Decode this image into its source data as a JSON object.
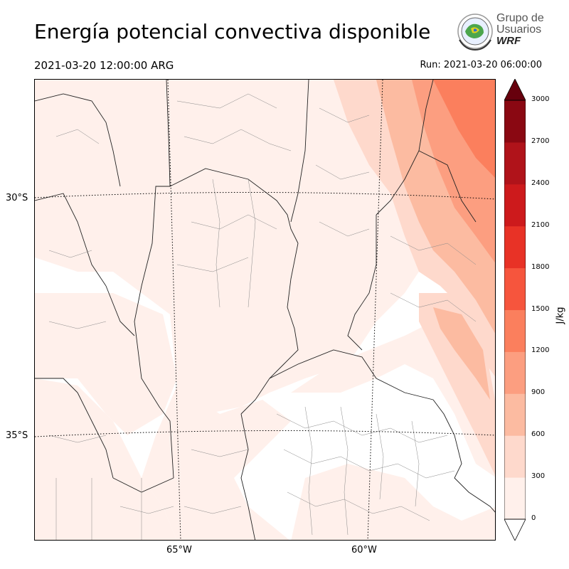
{
  "header": {
    "title": "Energía potencial convectiva disponible",
    "valid_time": "2021-03-20 12:00:00 ARG",
    "run_time": "Run: 2021-03-20 06:00:00"
  },
  "logo": {
    "line1": "Grupo de",
    "line2": "Usuarios",
    "line3": "WRF"
  },
  "map": {
    "lat_labels": [
      "30°S",
      "35°S"
    ],
    "lon_labels": [
      "65°W",
      "60°W"
    ]
  },
  "colorbar": {
    "unit_label": "J/kg",
    "ticks": [
      "0",
      "300",
      "600",
      "900",
      "1200",
      "1500",
      "1800",
      "2100",
      "2400",
      "2700",
      "3000"
    ],
    "colors": [
      "#fff0eb",
      "#fed9cc",
      "#fcbba1",
      "#fc9e80",
      "#fb7f5d",
      "#f6553d",
      "#e83226",
      "#cd1a1c",
      "#b0131a",
      "#8a0812",
      "#67000d"
    ]
  }
}
